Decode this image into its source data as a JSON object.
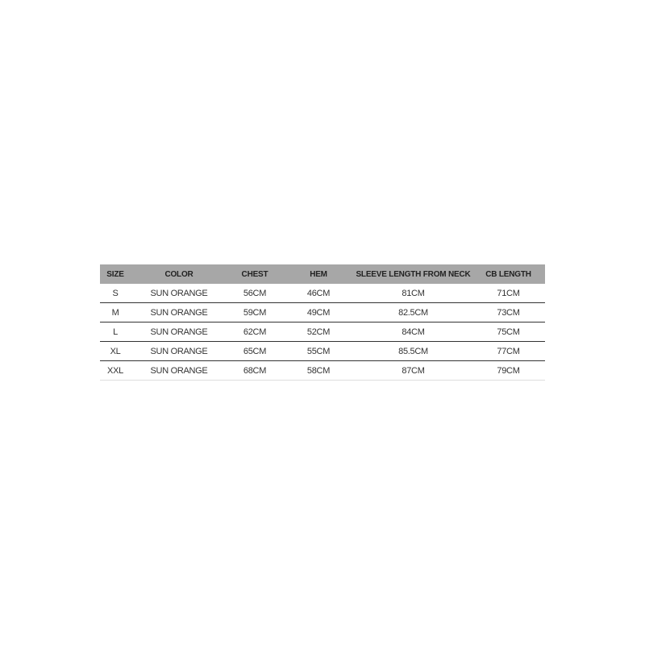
{
  "table": {
    "header": [
      "SIZE",
      "COLOR",
      "CHEST",
      "HEM",
      "SLEEVE LENGTH FROM NECK",
      "CB LENGTH"
    ],
    "rows": [
      [
        "S",
        "SUN ORANGE",
        "56CM",
        "46CM",
        "81CM",
        "71CM"
      ],
      [
        "M",
        "SUN ORANGE",
        "59CM",
        "49CM",
        "82.5CM",
        "73CM"
      ],
      [
        "L",
        "SUN ORANGE",
        "62CM",
        "52CM",
        "84CM",
        "75CM"
      ],
      [
        "XL",
        "SUN ORANGE",
        "65CM",
        "55CM",
        "85.5CM",
        "77CM"
      ],
      [
        "XXL",
        "SUN ORANGE",
        "68CM",
        "58CM",
        "87CM",
        "79CM"
      ]
    ]
  }
}
